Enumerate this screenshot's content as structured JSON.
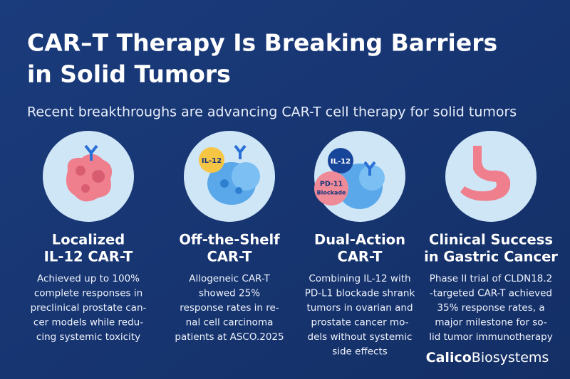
{
  "header": {
    "title_lines": [
      "CAR–T Therapy Is Breaking Barriers",
      "in Solid Tumors"
    ],
    "subtitle": "Recent breakthroughs are advancing CAR-T cell therapy for solid tumors"
  },
  "cards": [
    {
      "heading_lines": [
        "Localized",
        "IL-12 CAR-T"
      ],
      "body_lines": [
        "Achieved up to 100%",
        "complete responses in",
        "preclinical prostate can-",
        "cer models while redu-",
        "cing systemic toxicity"
      ]
    },
    {
      "icon_labels": [
        "IL-12"
      ],
      "heading_lines": [
        "Off-the-Shelf",
        "CAR-T"
      ],
      "body_lines": [
        "Allogeneic CAR-T",
        "showed 25%",
        "response rates in re-",
        "nal cell carcinoma",
        "patients at ASCO.2025"
      ]
    },
    {
      "icon_labels": [
        "IL-12",
        "PD-11",
        "Blockade"
      ],
      "heading_lines": [
        "Dual-Action",
        "CAR-T"
      ],
      "body_lines": [
        "Combining IL-12 with",
        "PD-L1 blockade shrank",
        "tumors in ovarian and",
        "prostate cancer mo-",
        "dels without systemic",
        "side effects"
      ]
    },
    {
      "heading_lines": [
        "Clinical Success",
        "in Gastric Cancer"
      ],
      "body_lines": [
        "Phase II trial of CLDN18.2",
        "-targeted CAR-T achieved",
        "35% response rates, a",
        "major milestone for so-",
        "lid tumor immunotherapy"
      ]
    }
  ],
  "brand": {
    "bold": "Calico",
    "regular": "Biosystems"
  }
}
